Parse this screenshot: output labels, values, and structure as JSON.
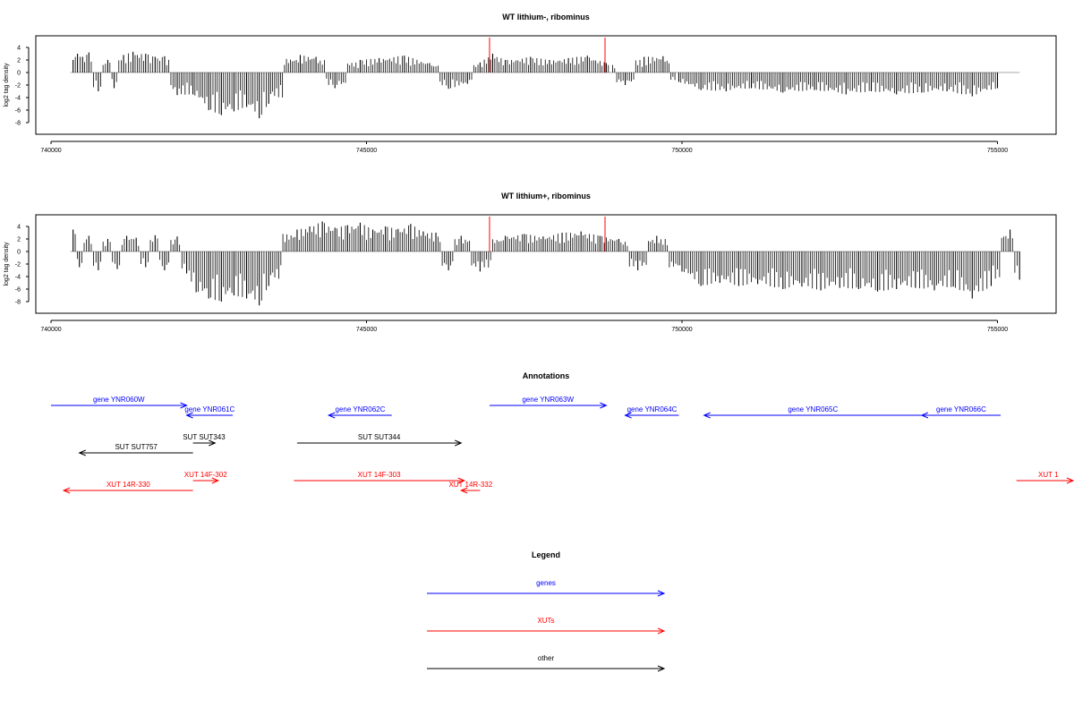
{
  "colors": {
    "genes": "#0000ff",
    "xuts": "#ff0000",
    "other": "#000000",
    "highlight": "#ff0000"
  },
  "chart_data": [
    {
      "type": "bar",
      "title": "WT lithium-, ribominus",
      "ylabel": "log2 tag density",
      "xlim": [
        740000,
        756000
      ],
      "ylim": [
        -9,
        5
      ],
      "xticks": [
        "740000",
        "745000",
        "750000",
        "755000"
      ],
      "yticks": [
        "4",
        "2",
        "0",
        "-2",
        "-4",
        "-6",
        "-8"
      ],
      "highlight_positions": [
        746950,
        748780
      ],
      "x": [
        740350,
        740420,
        740500,
        740600,
        740750,
        740900,
        741000,
        741150,
        741300,
        741500,
        741650,
        741800,
        742000,
        742250,
        742500,
        742700,
        742900,
        743100,
        743300,
        743450,
        743950,
        744200,
        744500,
        744900,
        745200,
        745600,
        746000,
        746300,
        746600,
        746800,
        747000,
        747200,
        747600,
        747900,
        748200,
        748500,
        748800,
        749100,
        749400,
        749700,
        749950,
        750300,
        750700,
        751100,
        751600,
        752100,
        752600,
        753000,
        753400,
        753800,
        754200,
        754600,
        755000
      ],
      "values": [
        2.0,
        3.0,
        2.5,
        3.2,
        -3.0,
        2.0,
        -2.5,
        2.8,
        3.3,
        3.0,
        2.5,
        2.6,
        -3.6,
        -3.5,
        -6.0,
        -6.8,
        -6.2,
        -5.5,
        -7.3,
        -5.0,
        2.8,
        2.5,
        -2.5,
        2.0,
        2.3,
        2.7,
        1.5,
        -2.6,
        -1.8,
        1.6,
        3.0,
        2.0,
        2.5,
        2.0,
        2.3,
        2.7,
        1.5,
        -2.0,
        2.5,
        2.6,
        -1.5,
        -2.8,
        -3.0,
        -2.5,
        -3.2,
        -2.8,
        -3.5,
        -3.0,
        -3.5,
        -3.2,
        -3.0,
        -3.8,
        -2.5
      ]
    },
    {
      "type": "bar",
      "title": "WT lithium+, ribominus",
      "ylabel": "log2 tag density",
      "xlim": [
        740000,
        756000
      ],
      "ylim": [
        -9,
        5
      ],
      "xticks": [
        "740000",
        "745000",
        "750000",
        "755000"
      ],
      "yticks": [
        "4",
        "2",
        "0",
        "-2",
        "-4",
        "-6",
        "-8"
      ],
      "highlight_positions": [
        746950,
        748780
      ],
      "x": [
        740350,
        740450,
        740600,
        740750,
        740900,
        741050,
        741200,
        741350,
        741500,
        741650,
        741800,
        742000,
        742150,
        742300,
        742500,
        742700,
        742900,
        743100,
        743300,
        743450,
        743900,
        744100,
        744300,
        744500,
        744700,
        744900,
        745100,
        745300,
        745500,
        745700,
        745900,
        746100,
        746300,
        746500,
        746800,
        747200,
        747500,
        747800,
        748100,
        748400,
        748700,
        749000,
        749300,
        749600,
        750000,
        750300,
        750600,
        750900,
        751200,
        751600,
        751900,
        752200,
        752500,
        752800,
        753100,
        753400,
        753700,
        754000,
        754300,
        754600,
        754900,
        755200,
        755350
      ],
      "values": [
        3.5,
        -2.5,
        2.5,
        -3.0,
        2.0,
        -2.8,
        2.5,
        2.2,
        -2.5,
        2.6,
        -3.0,
        2.4,
        -3.5,
        -6.5,
        -7.5,
        -8.0,
        -7.0,
        -7.5,
        -8.6,
        -5.5,
        3.5,
        4.0,
        4.8,
        3.8,
        4.2,
        4.6,
        3.5,
        4.0,
        3.6,
        4.4,
        3.2,
        3.0,
        -3.0,
        2.5,
        -3.2,
        2.5,
        2.8,
        2.4,
        3.0,
        3.2,
        2.5,
        2.0,
        -3.0,
        2.5,
        -3.2,
        -5.5,
        -5.0,
        -5.5,
        -5.2,
        -6.0,
        -5.6,
        -6.2,
        -5.8,
        -6.0,
        -6.4,
        -6.0,
        -5.8,
        -6.2,
        -5.6,
        -7.5,
        -5.5,
        3.5,
        -4.5
      ]
    }
  ],
  "annotations": {
    "title": "Annotations",
    "items": [
      {
        "label": "gene YNR060W",
        "type": "genes",
        "start": 740000,
        "end": 742150,
        "row": 0
      },
      {
        "label": "gene YNR061C",
        "type": "genes",
        "start": 742880,
        "end": 742150,
        "row": 1
      },
      {
        "label": "gene YNR062C",
        "type": "genes",
        "start": 745400,
        "end": 744400,
        "row": 1
      },
      {
        "label": "gene YNR063W",
        "type": "genes",
        "start": 746950,
        "end": 748800,
        "row": 0
      },
      {
        "label": "gene YNR064C",
        "type": "genes",
        "start": 749950,
        "end": 749100,
        "row": 1
      },
      {
        "label": "gene YNR065C",
        "type": "genes",
        "start": 753800,
        "end": 750350,
        "row": 1
      },
      {
        "label": "gene YNR066C",
        "type": "genes",
        "start": 755050,
        "end": 753800,
        "row": 1
      },
      {
        "label": "SUT SUT757",
        "type": "other",
        "start": 742250,
        "end": 740450,
        "row": 3
      },
      {
        "label": "SUT SUT343",
        "type": "other",
        "start": 742250,
        "end": 742600,
        "row": 2
      },
      {
        "label": "SUT SUT344",
        "type": "other",
        "start": 743900,
        "end": 746500,
        "row": 2
      },
      {
        "label": "XUT 14F-302",
        "type": "xuts",
        "start": 742250,
        "end": 742650,
        "row": 4
      },
      {
        "label": "XUT 14R-330",
        "type": "xuts",
        "start": 742250,
        "end": 740200,
        "row": 5
      },
      {
        "label": "XUT 14F-303",
        "type": "xuts",
        "start": 743850,
        "end": 746550,
        "row": 4
      },
      {
        "label": "XUT 14R-332",
        "type": "xuts",
        "start": 746800,
        "end": 746500,
        "row": 5
      },
      {
        "label": "XUT 1",
        "type": "xuts",
        "start": 755300,
        "end": 756500,
        "row": 4
      }
    ]
  },
  "legend": {
    "title": "Legend",
    "items": [
      {
        "label": "genes",
        "type": "genes"
      },
      {
        "label": "XUTs",
        "type": "xuts"
      },
      {
        "label": "other",
        "type": "other"
      }
    ]
  }
}
